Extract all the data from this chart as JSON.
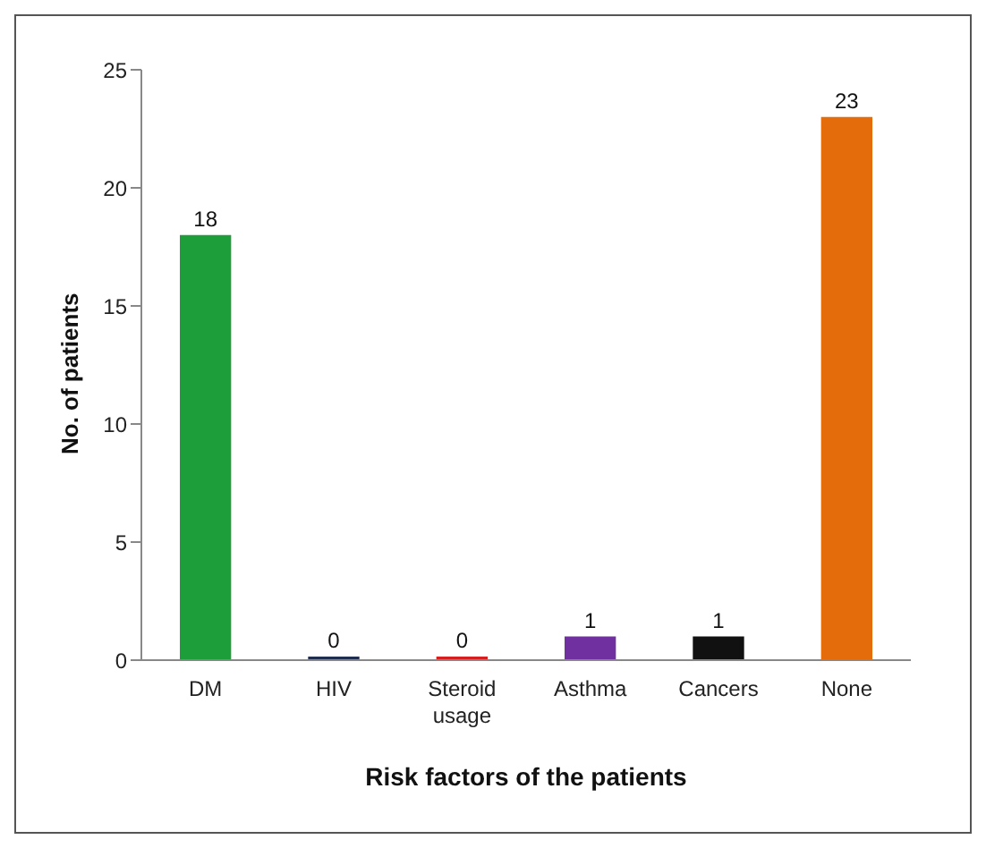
{
  "chart_data": {
    "type": "bar",
    "xlabel": "Risk factors of the patients",
    "ylabel": "No. of patients",
    "categories": [
      "DM",
      "HIV",
      "Steroid usage",
      "Asthma",
      "Cancers",
      "None"
    ],
    "values": [
      18,
      0,
      0,
      1,
      1,
      23
    ],
    "colors": [
      "#1e9e3a",
      "#1f2d4e",
      "#d42020",
      "#7030a0",
      "#111111",
      "#e46c0a"
    ],
    "ylim": [
      0,
      25
    ],
    "yticks": [
      0,
      5,
      10,
      15,
      20,
      25
    ],
    "data_labels": true,
    "grid": false,
    "legend": false
  }
}
